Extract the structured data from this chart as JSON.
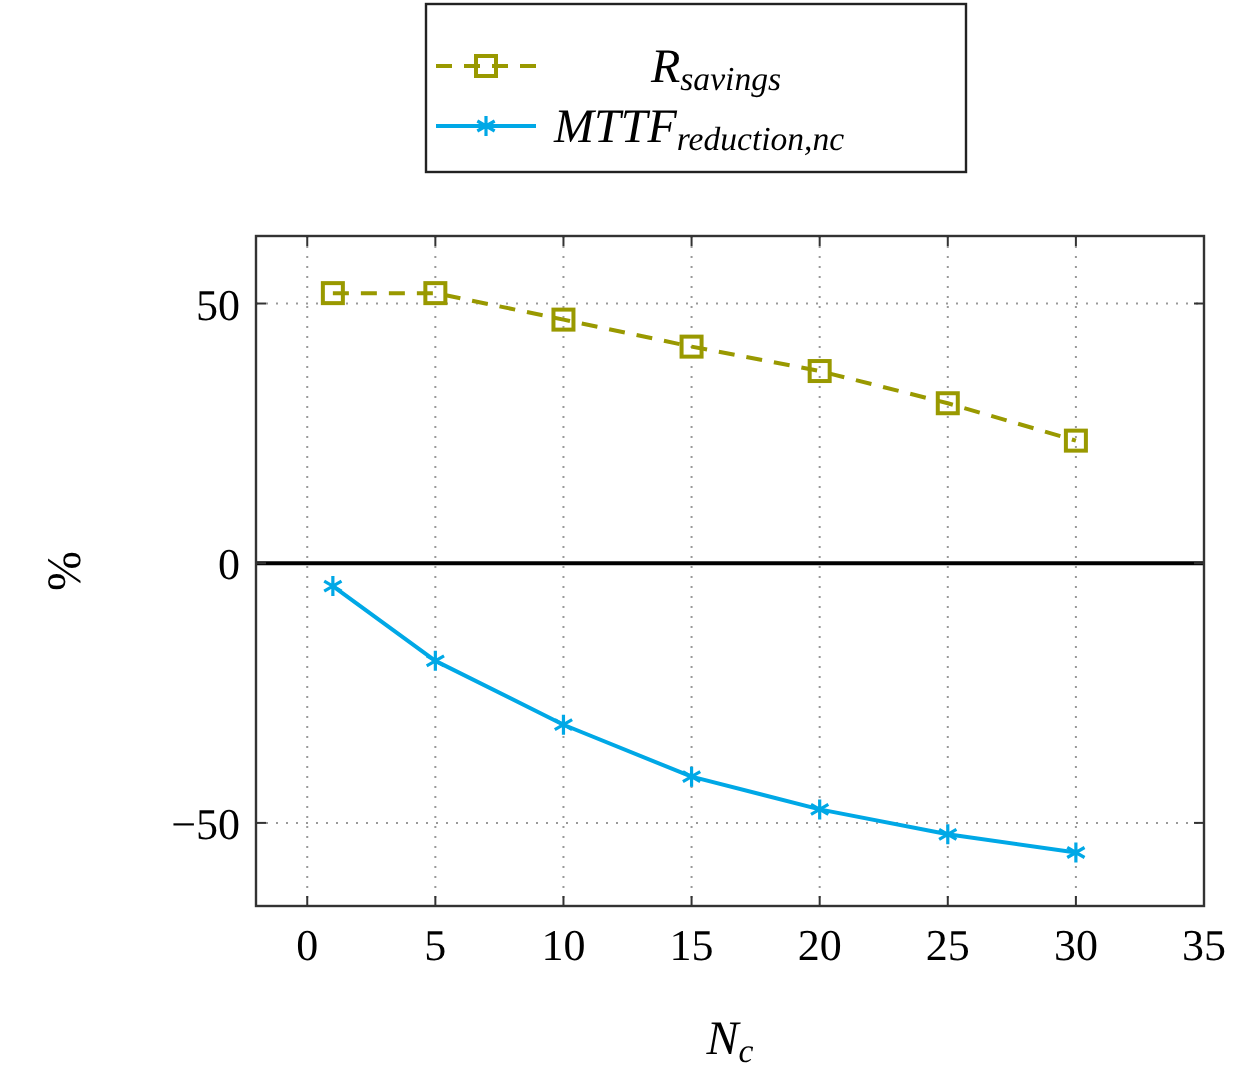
{
  "chart_data": {
    "type": "line",
    "xlabel": "N$_{c}$",
    "ylabel": "%",
    "x": [
      1,
      5,
      10,
      15,
      20,
      25,
      30
    ],
    "series": [
      {
        "name": "R$_{savings}$",
        "color": "#999900",
        "marker": "square",
        "line_style": "dashed",
        "values": [
          52,
          52,
          46.9,
          41.7,
          37,
          30.8,
          23.6
        ]
      },
      {
        "name": "MTTF$_{reduction,nc}$",
        "color": "#00a8e6",
        "marker": "cross",
        "line_style": "solid",
        "values": [
          -4.4,
          -18.8,
          -31.1,
          -41.1,
          -47.4,
          -52.2,
          -55.7
        ]
      }
    ],
    "xlim": [
      -2,
      35
    ],
    "xticks": [
      0,
      5,
      10,
      15,
      20,
      25,
      30,
      35
    ],
    "ylim": [
      -66,
      63
    ],
    "yticks": [
      {
        "value": -50,
        "label": "−50"
      },
      0,
      50
    ],
    "grid": true,
    "legend": "top",
    "ref_lines": [
      {
        "axis": "y",
        "value": 0,
        "color": "#000000"
      }
    ]
  }
}
